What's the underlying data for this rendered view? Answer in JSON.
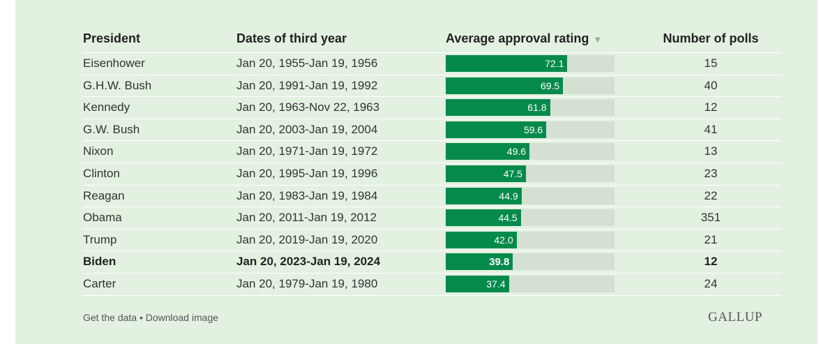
{
  "headers": {
    "president": "President",
    "dates": "Dates of third year",
    "approval": "Average approval rating",
    "sort_icon": "▼",
    "polls": "Number of polls"
  },
  "rows": [
    {
      "president": "Eisenhower",
      "dates": "Jan 20, 1955-Jan 19, 1956",
      "approval": "72.1",
      "approval_value": 72.1,
      "polls": "15",
      "highlight": false
    },
    {
      "president": "G.H.W. Bush",
      "dates": "Jan 20, 1991-Jan 19, 1992",
      "approval": "69.5",
      "approval_value": 69.5,
      "polls": "40",
      "highlight": false
    },
    {
      "president": "Kennedy",
      "dates": "Jan 20, 1963-Nov 22, 1963",
      "approval": "61.8",
      "approval_value": 61.8,
      "polls": "12",
      "highlight": false
    },
    {
      "president": "G.W. Bush",
      "dates": "Jan 20, 2003-Jan 19, 2004",
      "approval": "59.6",
      "approval_value": 59.6,
      "polls": "41",
      "highlight": false
    },
    {
      "president": "Nixon",
      "dates": "Jan 20, 1971-Jan 19, 1972",
      "approval": "49.6",
      "approval_value": 49.6,
      "polls": "13",
      "highlight": false
    },
    {
      "president": "Clinton",
      "dates": "Jan 20, 1995-Jan 19, 1996",
      "approval": "47.5",
      "approval_value": 47.5,
      "polls": "23",
      "highlight": false
    },
    {
      "president": "Reagan",
      "dates": "Jan 20, 1983-Jan 19, 1984",
      "approval": "44.9",
      "approval_value": 44.9,
      "polls": "22",
      "highlight": false
    },
    {
      "president": "Obama",
      "dates": "Jan 20, 2011-Jan 19, 2012",
      "approval": "44.5",
      "approval_value": 44.5,
      "polls": "351",
      "highlight": false
    },
    {
      "president": "Trump",
      "dates": "Jan 20, 2019-Jan 19, 2020",
      "approval": "42.0",
      "approval_value": 42.0,
      "polls": "21",
      "highlight": false
    },
    {
      "president": "Biden",
      "dates": "Jan 20, 2023-Jan 19, 2024",
      "approval": "39.8",
      "approval_value": 39.8,
      "polls": "12",
      "highlight": true
    },
    {
      "president": "Carter",
      "dates": "Jan 20, 1979-Jan 19, 1980",
      "approval": "37.4",
      "approval_value": 37.4,
      "polls": "24",
      "highlight": false
    }
  ],
  "bar_scale_max": 100,
  "footer": {
    "get_data": "Get the data",
    "separator": " • ",
    "download": "Download image"
  },
  "logo": "GALLUP",
  "colors": {
    "background": "#e3f1e1",
    "bar_fill": "#068a4c",
    "bar_track": "#d3e0d2"
  }
}
